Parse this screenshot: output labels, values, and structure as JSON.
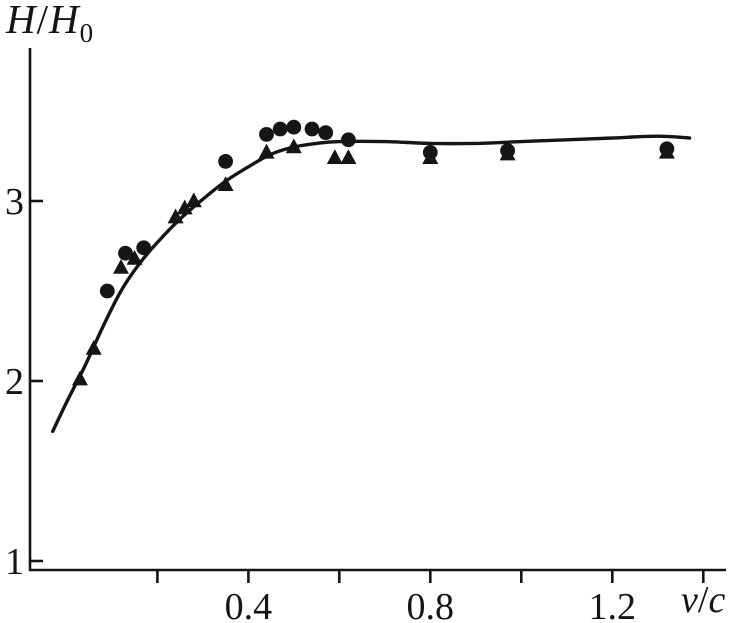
{
  "labels": {
    "y_h1": "H",
    "y_slash": "/",
    "y_h2": "H",
    "y_sub": "0",
    "x_v": "v",
    "x_slash": "/",
    "x_c": "c"
  },
  "chart_data": {
    "type": "line+scatter",
    "title": "",
    "xlabel": "v/c",
    "ylabel": "H/H0",
    "ink": "#151515",
    "xlim": [
      -0.08,
      1.45
    ],
    "ylim": [
      0.95,
      3.85
    ],
    "grid": false,
    "legend": "none",
    "x_ticks": [
      {
        "v": 0.2,
        "label": ""
      },
      {
        "v": 0.4,
        "label": "0.4"
      },
      {
        "v": 0.6,
        "label": ""
      },
      {
        "v": 0.8,
        "label": "0.8"
      },
      {
        "v": 1.0,
        "label": ""
      },
      {
        "v": 1.2,
        "label": "1.2"
      },
      {
        "v": 1.4,
        "label": ""
      }
    ],
    "y_ticks": [
      {
        "v": 1,
        "label": "1"
      },
      {
        "v": 2,
        "label": "2"
      },
      {
        "v": 3,
        "label": "3"
      }
    ],
    "curve": [
      [
        -0.03,
        1.72
      ],
      [
        0.0,
        1.88
      ],
      [
        0.04,
        2.08
      ],
      [
        0.08,
        2.3
      ],
      [
        0.12,
        2.5
      ],
      [
        0.16,
        2.65
      ],
      [
        0.2,
        2.77
      ],
      [
        0.25,
        2.9
      ],
      [
        0.3,
        3.01
      ],
      [
        0.35,
        3.11
      ],
      [
        0.4,
        3.19
      ],
      [
        0.45,
        3.26
      ],
      [
        0.5,
        3.3
      ],
      [
        0.55,
        3.32
      ],
      [
        0.6,
        3.33
      ],
      [
        0.7,
        3.33
      ],
      [
        0.8,
        3.32
      ],
      [
        0.9,
        3.32
      ],
      [
        1.0,
        3.33
      ],
      [
        1.1,
        3.34
      ],
      [
        1.2,
        3.35
      ],
      [
        1.3,
        3.36
      ],
      [
        1.37,
        3.35
      ]
    ],
    "series": [
      {
        "name": "circle-markers",
        "marker": "circle",
        "points": [
          [
            0.09,
            2.5
          ],
          [
            0.13,
            2.71
          ],
          [
            0.17,
            2.74
          ],
          [
            0.35,
            3.22
          ],
          [
            0.44,
            3.37
          ],
          [
            0.47,
            3.4
          ],
          [
            0.5,
            3.41
          ],
          [
            0.54,
            3.4
          ],
          [
            0.57,
            3.38
          ],
          [
            0.62,
            3.34
          ],
          [
            0.8,
            3.27
          ],
          [
            0.97,
            3.28
          ],
          [
            1.32,
            3.29
          ]
        ]
      },
      {
        "name": "triangle-markers",
        "marker": "triangle",
        "points": [
          [
            0.03,
            2.01
          ],
          [
            0.06,
            2.18
          ],
          [
            0.12,
            2.63
          ],
          [
            0.15,
            2.68
          ],
          [
            0.24,
            2.91
          ],
          [
            0.26,
            2.96
          ],
          [
            0.28,
            3.0
          ],
          [
            0.35,
            3.09
          ],
          [
            0.44,
            3.27
          ],
          [
            0.5,
            3.3
          ],
          [
            0.59,
            3.24
          ],
          [
            0.62,
            3.24
          ],
          [
            0.8,
            3.24
          ],
          [
            0.97,
            3.26
          ],
          [
            1.32,
            3.27
          ]
        ]
      }
    ]
  }
}
